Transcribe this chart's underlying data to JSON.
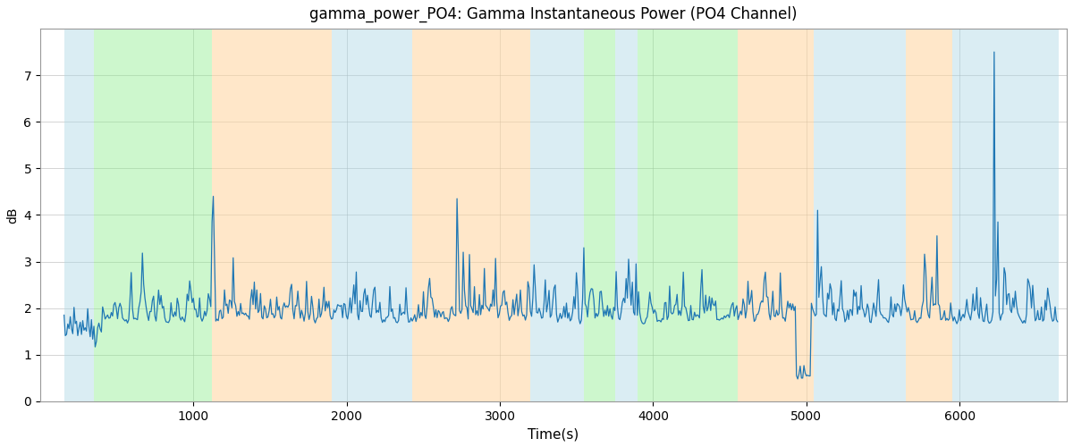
{
  "title": "gamma_power_PO4: Gamma Instantaneous Power (PO4 Channel)",
  "xlabel": "Time(s)",
  "ylabel": "dB",
  "xlim": [
    0,
    6700
  ],
  "ylim": [
    0,
    8.0
  ],
  "yticks": [
    0,
    1,
    2,
    3,
    4,
    5,
    6,
    7
  ],
  "xticks": [
    1000,
    2000,
    3000,
    4000,
    5000,
    6000
  ],
  "line_color": "#1f77b4",
  "line_width": 0.9,
  "background_color": "#ffffff",
  "grid_color": "#aaaaaa",
  "bands": [
    {
      "xmin": 155,
      "xmax": 350,
      "color": "#add8e6",
      "alpha": 0.45
    },
    {
      "xmin": 350,
      "xmax": 1120,
      "color": "#90ee90",
      "alpha": 0.45
    },
    {
      "xmin": 1120,
      "xmax": 1900,
      "color": "#ffd59e",
      "alpha": 0.55
    },
    {
      "xmin": 1900,
      "xmax": 2200,
      "color": "#add8e6",
      "alpha": 0.45
    },
    {
      "xmin": 2200,
      "xmax": 2430,
      "color": "#add8e6",
      "alpha": 0.45
    },
    {
      "xmin": 2430,
      "xmax": 2530,
      "color": "#ffd59e",
      "alpha": 0.55
    },
    {
      "xmin": 2530,
      "xmax": 3200,
      "color": "#ffd59e",
      "alpha": 0.55
    },
    {
      "xmin": 3200,
      "xmax": 3550,
      "color": "#add8e6",
      "alpha": 0.45
    },
    {
      "xmin": 3550,
      "xmax": 3750,
      "color": "#90ee90",
      "alpha": 0.45
    },
    {
      "xmin": 3750,
      "xmax": 3900,
      "color": "#add8e6",
      "alpha": 0.45
    },
    {
      "xmin": 3900,
      "xmax": 4550,
      "color": "#90ee90",
      "alpha": 0.45
    },
    {
      "xmin": 4550,
      "xmax": 4730,
      "color": "#ffd59e",
      "alpha": 0.55
    },
    {
      "xmin": 4730,
      "xmax": 5050,
      "color": "#ffd59e",
      "alpha": 0.55
    },
    {
      "xmin": 5050,
      "xmax": 5650,
      "color": "#add8e6",
      "alpha": 0.45
    },
    {
      "xmin": 5650,
      "xmax": 5950,
      "color": "#ffd59e",
      "alpha": 0.55
    },
    {
      "xmin": 5950,
      "xmax": 6650,
      "color": "#add8e6",
      "alpha": 0.45
    }
  ],
  "seed": 42,
  "n_points": 800,
  "time_start": 155,
  "time_end": 6640
}
